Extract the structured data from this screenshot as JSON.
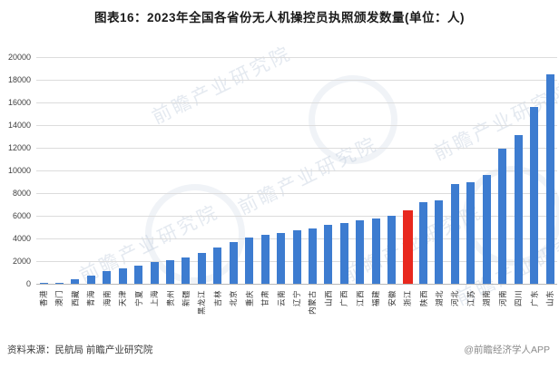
{
  "title": "图表16：2023年全国各省份无人机操控员执照颁发数量(单位：人)",
  "source_line": "资料来源：民航局 前瞻产业研究院",
  "footer_right": "@前瞻经济学人APP",
  "watermark_text": "前瞻产业研究院",
  "colors": {
    "bar": "#3d7cd0",
    "highlight": "#e8281e",
    "gridline": "#dcdcdc",
    "title_text": "#1a1a1a"
  },
  "chart_data": {
    "type": "bar",
    "title": "图表16：2023年全国各省份无人机操控员执照颁发数量(单位：人)",
    "unit": "人",
    "xlabel": "",
    "ylabel": "",
    "ylim": [
      0,
      20000
    ],
    "ytick_step": 2000,
    "yticks": [
      0,
      2000,
      4000,
      6000,
      8000,
      10000,
      12000,
      14000,
      16000,
      18000,
      20000
    ],
    "grid": true,
    "legend_position": "none",
    "highlight_category": "浙江",
    "highlight_index": 23,
    "categories": [
      "香港",
      "澳门",
      "西藏",
      "青海",
      "海南",
      "天津",
      "宁夏",
      "上海",
      "贵州",
      "新疆",
      "黑龙江",
      "吉林",
      "北京",
      "重庆",
      "甘肃",
      "云南",
      "辽宁",
      "内蒙古",
      "山西",
      "广西",
      "江西",
      "福建",
      "安徽",
      "浙江",
      "陕西",
      "湖北",
      "河北",
      "江苏",
      "湖南",
      "河南",
      "四川",
      "广东",
      "山东"
    ],
    "values": [
      30,
      80,
      400,
      700,
      1100,
      1400,
      1600,
      1900,
      2100,
      2300,
      2700,
      3200,
      3700,
      4100,
      4300,
      4500,
      4700,
      4900,
      5200,
      5400,
      5600,
      5800,
      6000,
      6500,
      7200,
      7400,
      8800,
      9000,
      9600,
      11900,
      13100,
      15600,
      18500
    ]
  }
}
